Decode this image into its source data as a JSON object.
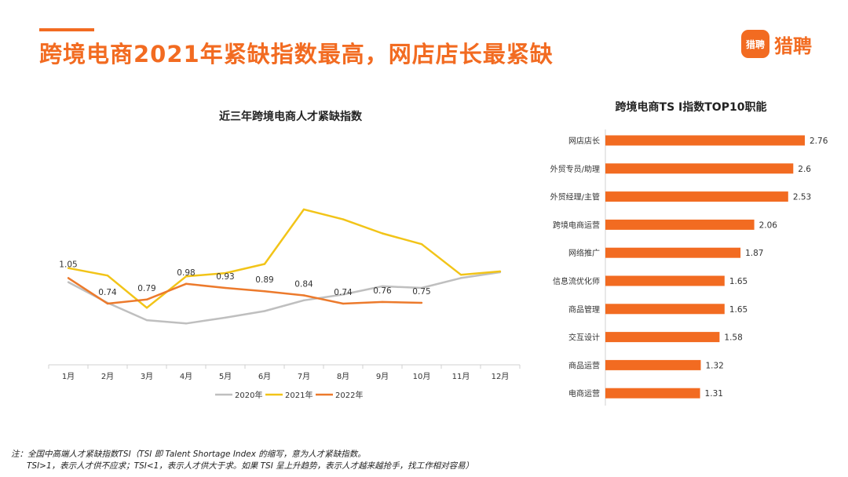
{
  "header": {
    "title": "跨境电商2021年紧缺指数最高，网店店长最紧缺",
    "logo_badge": "猎聘",
    "logo_text": "猎聘",
    "brand_color": "#f26b21"
  },
  "chart_data": [
    {
      "type": "line",
      "title": "近三年跨境电商人才紧缺指数",
      "categories": [
        "1月",
        "2月",
        "3月",
        "4月",
        "5月",
        "6月",
        "7月",
        "8月",
        "9月",
        "10月",
        "11月",
        "12月"
      ],
      "ylim": [
        0,
        2.8
      ],
      "series": [
        {
          "name": "2020年",
          "color": "#bfbfbf",
          "values": [
            1.0,
            0.75,
            0.54,
            0.5,
            0.57,
            0.65,
            0.78,
            0.85,
            0.95,
            0.93,
            1.05,
            1.12
          ],
          "labels": false
        },
        {
          "name": "2021年",
          "color": "#f2c418",
          "values": [
            1.17,
            1.08,
            0.69,
            1.07,
            1.11,
            1.22,
            1.88,
            1.76,
            1.59,
            1.46,
            1.09,
            1.13
          ],
          "labels": false
        },
        {
          "name": "2022年",
          "color": "#ec7a2c",
          "values": [
            1.05,
            0.74,
            0.79,
            0.98,
            0.93,
            0.89,
            0.84,
            0.74,
            0.76,
            0.75,
            null,
            null
          ],
          "labels": true,
          "label_text": [
            "1.05",
            "0.74",
            "0.79",
            "0.98",
            "0.93",
            "0.89",
            "0.84",
            "0.74",
            "0.76",
            "0.75"
          ]
        }
      ],
      "legend": "bottom"
    },
    {
      "type": "bar",
      "orientation": "horizontal",
      "title": "跨境电商TS I指数TOP10职能",
      "color": "#f26b21",
      "xlim": [
        0,
        3.0
      ],
      "categories": [
        "网店店长",
        "外贸专员/助理",
        "外贸经理/主管",
        "跨境电商运营",
        "网络推广",
        "信息流优化师",
        "商品管理",
        "交互设计",
        "商品运营",
        "电商运营"
      ],
      "values": [
        2.76,
        2.6,
        2.53,
        2.06,
        1.87,
        1.65,
        1.65,
        1.58,
        1.32,
        1.31
      ],
      "value_labels": [
        "2.76",
        "2.6",
        "2.53",
        "2.06",
        "1.87",
        "1.65",
        "1.65",
        "1.58",
        "1.32",
        "1.31"
      ]
    }
  ],
  "footnote": {
    "line1": "注：全国中高端人才紧缺指数TSI（TSI 即 Talent Shortage Index 的缩写，意为人才紧缺指数。",
    "line2": "TSI>1，表示人才供不应求；TSI<1，表示人才供大于求。如果 TSI 呈上升趋势，表示人才越来越抢手，找工作相对容易）"
  }
}
